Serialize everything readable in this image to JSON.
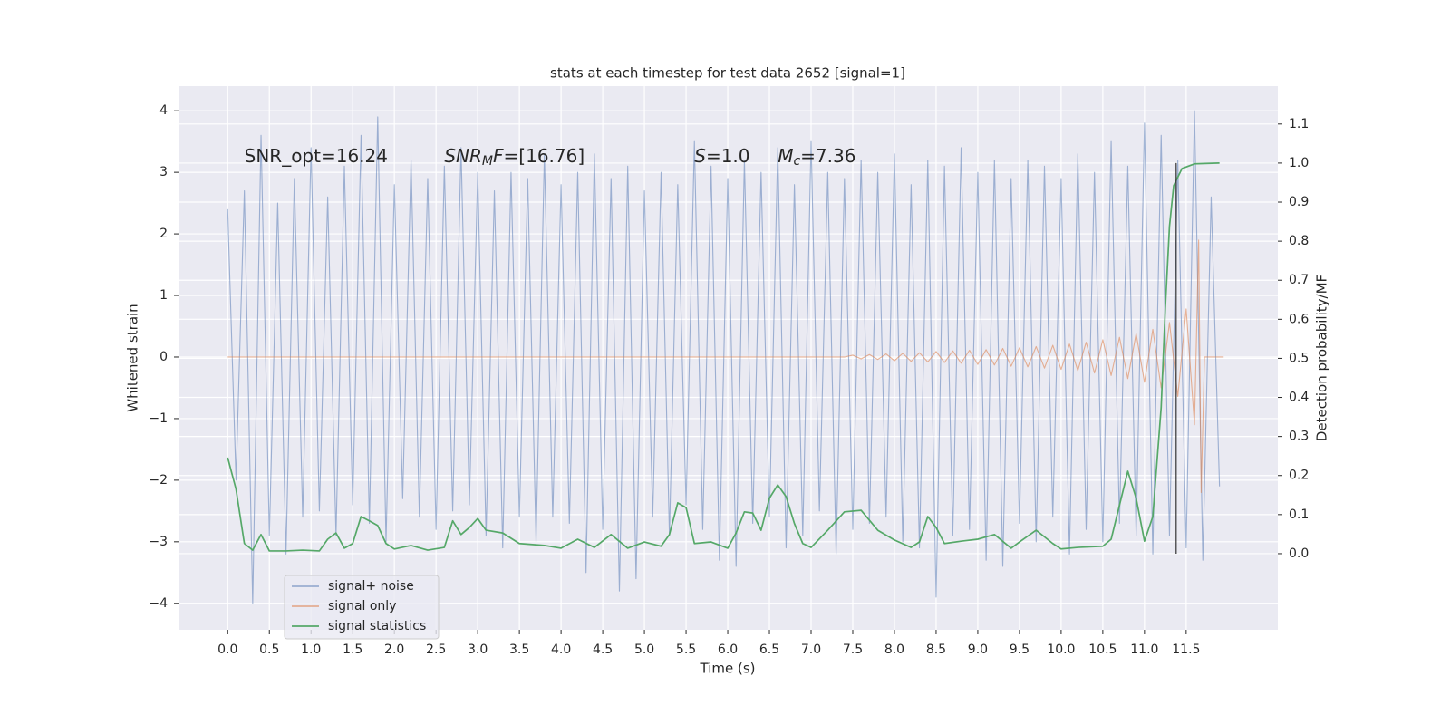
{
  "chart_data": {
    "type": "line",
    "title": "stats at each timestep for test data 2652 [signal=1]",
    "xlabel": "Time (s)",
    "ylabel": "Whitened strain",
    "y2label": "Detection probability/MF",
    "xlim": [
      -0.59,
      12.6
    ],
    "xticks": [
      {
        "value": 0,
        "label": "0.0"
      },
      0.5,
      {
        "value": 1,
        "label": "1.0"
      },
      1.5,
      {
        "value": 2,
        "label": "2.0"
      },
      2.5,
      {
        "value": 3,
        "label": "3.0"
      },
      3.5,
      {
        "value": 4,
        "label": "4.0"
      },
      4.5,
      {
        "value": 5,
        "label": "5.0"
      },
      5.5,
      {
        "value": 6,
        "label": "6.0"
      },
      6.5,
      {
        "value": 7,
        "label": "7.0"
      },
      7.5,
      {
        "value": 8,
        "label": "8.0"
      },
      8.5,
      {
        "value": 9,
        "label": "9.0"
      },
      9.5,
      {
        "value": 10,
        "label": "10.0"
      },
      10.5,
      {
        "value": 11,
        "label": "11.0"
      },
      11.5
    ],
    "ylim": [
      -4.43,
      4.4
    ],
    "yticks": [
      {
        "value": -4,
        "label": "−4"
      },
      {
        "value": -3,
        "label": "−3"
      },
      {
        "value": -2,
        "label": "−2"
      },
      {
        "value": -1,
        "label": "−1"
      },
      0,
      1,
      2,
      3,
      4
    ],
    "y2lim": [
      -0.195,
      1.197
    ],
    "y2ticks": [
      {
        "value": 0,
        "label": "0.0"
      },
      0.1,
      0.2,
      0.3,
      0.4,
      0.5,
      0.6,
      0.7,
      0.8,
      0.9,
      {
        "value": 1,
        "label": "1.0"
      },
      1.1
    ],
    "grid": true,
    "legend": "lower left",
    "series": [
      {
        "name": "signal+ noise",
        "color": "#4c72b0",
        "opacity": 0.5,
        "x": [
          0,
          0.1,
          0.2,
          0.3,
          0.4,
          0.5,
          0.6,
          0.7,
          0.8,
          0.9,
          1,
          1.1,
          1.2,
          1.3,
          1.4,
          1.5,
          1.6,
          1.7,
          1.8,
          1.9,
          2,
          2.1,
          2.2,
          2.3,
          2.4,
          2.5,
          2.6,
          2.7,
          2.8,
          2.9,
          3,
          3.1,
          3.2,
          3.3,
          3.4,
          3.5,
          3.6,
          3.7,
          3.8,
          3.9,
          4,
          4.1,
          4.2,
          4.3,
          4.4,
          4.5,
          4.6,
          4.7,
          4.8,
          4.9,
          5,
          5.1,
          5.2,
          5.3,
          5.4,
          5.5,
          5.6,
          5.7,
          5.8,
          5.9,
          6,
          6.1,
          6.2,
          6.3,
          6.4,
          6.5,
          6.6,
          6.7,
          6.8,
          6.9,
          7,
          7.1,
          7.2,
          7.3,
          7.4,
          7.5,
          7.6,
          7.7,
          7.8,
          7.9,
          8,
          8.1,
          8.2,
          8.3,
          8.4,
          8.5,
          8.6,
          8.7,
          8.8,
          8.9,
          9,
          9.1,
          9.2,
          9.3,
          9.4,
          9.5,
          9.6,
          9.7,
          9.8,
          9.9,
          10,
          10.1,
          10.2,
          10.3,
          10.4,
          10.5,
          10.6,
          10.7,
          10.8,
          10.9,
          11,
          11.1,
          11.2,
          11.3,
          11.4,
          11.5,
          11.6,
          11.7,
          11.8,
          11.9
        ],
        "values": [
          2.4,
          -2.0,
          2.7,
          -4.0,
          3.6,
          -2.9,
          2.5,
          -3.2,
          2.9,
          -2.6,
          3.4,
          -2.5,
          2.6,
          -2.9,
          3.1,
          -2.4,
          3.6,
          -2.7,
          3.9,
          -3.0,
          2.8,
          -2.3,
          3.2,
          -2.6,
          2.9,
          -2.8,
          3.1,
          -2.5,
          3.4,
          -2.4,
          3.0,
          -2.9,
          2.7,
          -3.1,
          3.0,
          -2.6,
          2.9,
          -3.0,
          3.3,
          -2.6,
          2.8,
          -2.7,
          3.0,
          -3.5,
          3.3,
          -2.8,
          2.9,
          -3.8,
          3.1,
          -3.6,
          2.7,
          -2.6,
          3.0,
          -2.9,
          2.8,
          -2.4,
          3.5,
          -2.8,
          3.1,
          -3.3,
          2.9,
          -3.4,
          3.2,
          -2.7,
          3.0,
          -2.6,
          3.4,
          -3.1,
          2.8,
          -2.9,
          3.5,
          -2.5,
          3.0,
          -3.2,
          2.9,
          -2.8,
          3.2,
          -2.7,
          3.0,
          -2.6,
          3.3,
          -3.0,
          2.8,
          -3.1,
          3.2,
          -3.9,
          3.1,
          -2.9,
          3.4,
          -2.8,
          3.0,
          -3.3,
          3.2,
          -3.4,
          2.9,
          -2.7,
          3.2,
          -3.0,
          3.1,
          -2.6,
          2.9,
          -3.2,
          3.3,
          -2.8,
          3.0,
          -3.0,
          3.5,
          -2.7,
          3.1,
          -2.9,
          3.8,
          -3.2,
          3.6,
          -2.9,
          3.2,
          -3.1,
          4.0,
          -3.3,
          2.6,
          -2.1
        ]
      },
      {
        "name": "signal only",
        "color": "#dd8452",
        "opacity": 0.6,
        "x": [
          0,
          7.4,
          7.5,
          7.6,
          7.7,
          7.8,
          7.9,
          8,
          8.1,
          8.2,
          8.3,
          8.4,
          8.5,
          8.6,
          8.7,
          8.8,
          8.9,
          9,
          9.1,
          9.2,
          9.3,
          9.4,
          9.5,
          9.6,
          9.7,
          9.8,
          9.9,
          10,
          10.1,
          10.2,
          10.3,
          10.4,
          10.5,
          10.6,
          10.7,
          10.8,
          10.9,
          11,
          11.1,
          11.2,
          11.3,
          11.4,
          11.5,
          11.6,
          11.65,
          11.68,
          11.72,
          11.95
        ],
        "values": [
          0,
          0,
          0.03,
          -0.03,
          0.04,
          -0.04,
          0.05,
          -0.06,
          0.06,
          -0.07,
          0.07,
          -0.08,
          0.09,
          -0.09,
          0.1,
          -0.1,
          0.11,
          -0.12,
          0.12,
          -0.13,
          0.14,
          -0.15,
          0.15,
          -0.16,
          0.17,
          -0.18,
          0.19,
          -0.2,
          0.21,
          -0.22,
          0.24,
          -0.26,
          0.28,
          -0.3,
          0.32,
          -0.35,
          0.38,
          -0.41,
          0.45,
          -0.5,
          0.56,
          -0.64,
          0.78,
          -1.1,
          1.9,
          -2.2,
          0,
          0
        ]
      },
      {
        "name": "signal statistics",
        "color": "#55a868",
        "opacity": 1,
        "axis": "y2",
        "x": [
          0,
          0.1,
          0.2,
          0.3,
          0.4,
          0.5,
          0.7,
          0.9,
          1.1,
          1.2,
          1.3,
          1.4,
          1.5,
          1.6,
          1.7,
          1.8,
          1.9,
          2.0,
          2.2,
          2.4,
          2.6,
          2.7,
          2.8,
          2.9,
          3.0,
          3.1,
          3.3,
          3.5,
          3.8,
          4.0,
          4.2,
          4.4,
          4.6,
          4.8,
          5.0,
          5.2,
          5.3,
          5.4,
          5.5,
          5.6,
          5.8,
          6.0,
          6.1,
          6.2,
          6.3,
          6.4,
          6.5,
          6.6,
          6.7,
          6.8,
          6.9,
          7.0,
          7.2,
          7.4,
          7.6,
          7.8,
          8.0,
          8.2,
          8.3,
          8.4,
          8.5,
          8.6,
          8.8,
          9.0,
          9.2,
          9.4,
          9.5,
          9.7,
          9.9,
          10.0,
          10.2,
          10.5,
          10.6,
          10.8,
          10.9,
          11.0,
          11.1,
          11.2,
          11.25,
          11.3,
          11.35,
          11.45,
          11.6,
          11.9
        ],
        "values": [
          0.246,
          0.165,
          0.026,
          0.009,
          0.049,
          0.007,
          0.007,
          0.009,
          0.007,
          0.037,
          0.053,
          0.014,
          0.026,
          0.095,
          0.084,
          0.072,
          0.026,
          0.012,
          0.021,
          0.009,
          0.016,
          0.084,
          0.049,
          0.067,
          0.09,
          0.06,
          0.053,
          0.026,
          0.021,
          0.014,
          0.037,
          0.016,
          0.049,
          0.014,
          0.03,
          0.019,
          0.049,
          0.13,
          0.118,
          0.026,
          0.03,
          0.014,
          0.053,
          0.107,
          0.104,
          0.06,
          0.142,
          0.176,
          0.146,
          0.077,
          0.026,
          0.016,
          0.06,
          0.107,
          0.111,
          0.06,
          0.035,
          0.016,
          0.03,
          0.095,
          0.067,
          0.026,
          0.032,
          0.037,
          0.049,
          0.014,
          0.03,
          0.06,
          0.026,
          0.012,
          0.016,
          0.019,
          0.037,
          0.211,
          0.142,
          0.032,
          0.095,
          0.374,
          0.629,
          0.838,
          0.942,
          0.986,
          0.998,
          1.0
        ]
      }
    ],
    "vline": {
      "x": 11.38,
      "y2": [
        0,
        1
      ],
      "color": "#333333"
    },
    "annotations": [
      {
        "x": 0.2,
        "y": 3.25,
        "segments": [
          {
            "text": "SNR_opt=16.24"
          }
        ]
      },
      {
        "x": 2.6,
        "y": 3.25,
        "segments": [
          {
            "text": "SNR",
            "style": "italic"
          },
          {
            "text": "M",
            "style": "sub"
          },
          {
            "text": "F",
            "style": "italic"
          },
          {
            "text": "=[16.76]"
          }
        ]
      },
      {
        "x": 5.6,
        "y": 3.25,
        "segments": [
          {
            "text": "S",
            "style": "italic"
          },
          {
            "text": "=1.0"
          }
        ]
      },
      {
        "x": 6.6,
        "y": 3.25,
        "segments": [
          {
            "text": "M",
            "style": "italic"
          },
          {
            "text": "c",
            "style": "sub"
          },
          {
            "text": "=7.36"
          }
        ]
      }
    ]
  }
}
